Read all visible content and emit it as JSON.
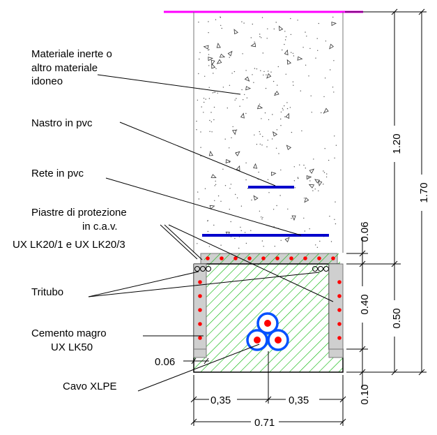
{
  "labels": {
    "inert_line1": "Materiale inerte o",
    "inert_line2": "altro materiale",
    "inert_line3": "idoneo",
    "nastro": "Nastro in pvc",
    "rete": "Rete in pvc",
    "piastre_line1": "Piastre di protezione",
    "piastre_line2": "in c.a.v.",
    "piastre_line3": "UX LK20/1 e UX LK20/3",
    "tritubo": "Tritubo",
    "cemento_line1": "Cemento magro",
    "cemento_line2": "UX LK50",
    "dim_006_left": "0.06",
    "cavo": "Cavo XLPE"
  },
  "dimensions": {
    "d120": "1.20",
    "d170": "1.70",
    "d006": "0.06",
    "d040": "0.40",
    "d050": "0.50",
    "d010": "0.10",
    "w035a": "0,35",
    "w035b": "0,35",
    "w071": "0.71"
  },
  "colors": {
    "ground_line": "#ff00ff",
    "tape": "#0000cc",
    "rebar": "#ff0000",
    "hatch": "#00b400",
    "cable_ring": "#0050ff",
    "plate_fill": "#cfcfcf"
  }
}
